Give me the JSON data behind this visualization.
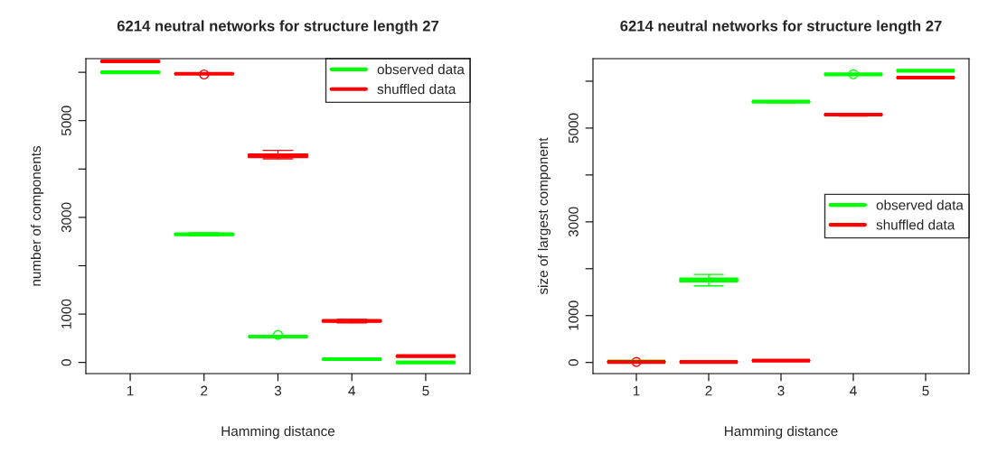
{
  "chart_data": [
    {
      "type": "box",
      "title": "6214 neutral networks for structure length 27",
      "xlabel": "Hamming distance",
      "ylabel": "number of components",
      "categories": [
        "1",
        "2",
        "3",
        "4",
        "5"
      ],
      "ylim": [
        -230,
        6282
      ],
      "yticks": [
        0,
        1000,
        {
          "value": 2000,
          "label": null
        },
        3000,
        {
          "value": 4000,
          "label": null
        },
        5000,
        {
          "value": 6000,
          "label": null
        }
      ],
      "legend": "top right",
      "grid": false,
      "series": [
        {
          "name": "observed data",
          "color": "#00ff00",
          "boxes": [
            {
              "low": 5990,
              "q1": 5995,
              "median": 6000,
              "q3": 6005,
              "high": 6010
            },
            {
              "low": 2620,
              "q1": 2635,
              "median": 2650,
              "q3": 2665,
              "high": 2680
            },
            {
              "low": 520,
              "q1": 530,
              "median": 535,
              "q3": 540,
              "high": 550,
              "outliers": [
                570
              ]
            },
            {
              "low": 60,
              "q1": 65,
              "median": 69,
              "q3": 73,
              "high": 78
            },
            {
              "low": 0,
              "q1": 0,
              "median": 0,
              "q3": 0,
              "high": 0
            }
          ]
        },
        {
          "name": "shuffled data",
          "color": "#ff0000",
          "boxes": [
            {
              "low": 6215,
              "q1": 6220,
              "median": 6226,
              "q3": 6232,
              "high": 6238
            },
            {
              "low": 5960,
              "q1": 5965,
              "median": 5970,
              "q3": 5975,
              "high": 5980,
              "outliers": [
                5955
              ]
            },
            {
              "low": 4210,
              "q1": 4240,
              "median": 4285,
              "q3": 4310,
              "high": 4385
            },
            {
              "low": 820,
              "q1": 840,
              "median": 858,
              "q3": 875,
              "high": 890
            },
            {
              "low": 120,
              "q1": 125,
              "median": 131,
              "q3": 137,
              "high": 142
            }
          ]
        }
      ]
    },
    {
      "type": "box",
      "title": "6214 neutral networks for structure length 27",
      "xlabel": "Hamming distance",
      "ylabel": "size of largest component",
      "categories": [
        "1",
        "2",
        "3",
        "4",
        "5"
      ],
      "ylim": [
        -237,
        6481
      ],
      "yticks": [
        0,
        1000,
        {
          "value": 2000,
          "label": null
        },
        3000,
        {
          "value": 4000,
          "label": null
        },
        5000,
        {
          "value": 6000,
          "label": null
        }
      ],
      "legend": "right",
      "grid": false,
      "series": [
        {
          "name": "observed data",
          "color": "#00ff00",
          "boxes": [
            {
              "low": 10,
              "q1": 15,
              "median": 20,
              "q3": 25,
              "high": 30
            },
            {
              "low": 1635,
              "q1": 1720,
              "median": 1763,
              "q3": 1800,
              "high": 1878
            },
            {
              "low": 5540,
              "q1": 5555,
              "median": 5563,
              "q3": 5570,
              "high": 5580
            },
            {
              "low": 6135,
              "q1": 6140,
              "median": 6148,
              "q3": 6155,
              "high": 6160,
              "outliers": [
                6148
              ]
            },
            {
              "low": 6215,
              "q1": 6220,
              "median": 6225,
              "q3": 6230,
              "high": 6235
            }
          ]
        },
        {
          "name": "shuffled data",
          "color": "#ff0000",
          "boxes": [
            {
              "low": 5,
              "q1": 8,
              "median": 10,
              "q3": 12,
              "high": 15,
              "outliers": [
                10
              ]
            },
            {
              "low": 5,
              "q1": 8,
              "median": 10,
              "q3": 12,
              "high": 15
            },
            {
              "low": 30,
              "q1": 35,
              "median": 40,
              "q3": 45,
              "high": 50
            },
            {
              "low": 5260,
              "q1": 5275,
              "median": 5288,
              "q3": 5300,
              "high": 5315
            },
            {
              "low": 6060,
              "q1": 6070,
              "median": 6077,
              "q3": 6085,
              "high": 6095
            }
          ]
        }
      ]
    }
  ]
}
